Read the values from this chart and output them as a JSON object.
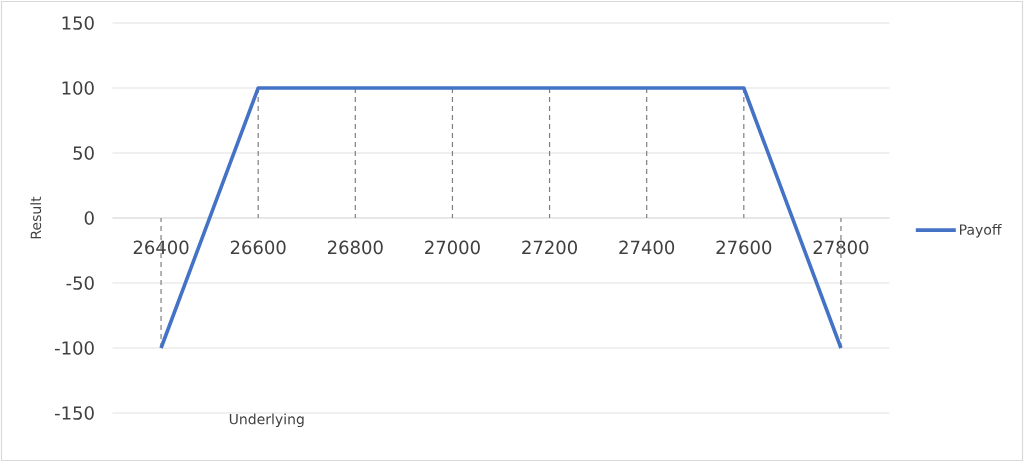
{
  "chart_data": {
    "type": "line",
    "xlabel": "Underlying",
    "ylabel": "Result",
    "categories": [
      "26400",
      "26600",
      "26800",
      "27000",
      "27200",
      "27400",
      "27600",
      "27800"
    ],
    "series": [
      {
        "name": "Payoff",
        "color": "#4472c4",
        "values": [
          -100,
          100,
          100,
          100,
          100,
          100,
          100,
          -100
        ],
        "errors": [
          [
            -100,
            0
          ],
          [
            0,
            100
          ],
          [
            0,
            100
          ],
          [
            0,
            100
          ],
          [
            0,
            100
          ],
          [
            0,
            100
          ],
          [
            0,
            100
          ],
          [
            -100,
            0
          ]
        ]
      }
    ],
    "ylim": [
      -150,
      150
    ],
    "yticks": [
      -150,
      -100,
      -50,
      0,
      50,
      100,
      150
    ],
    "grid": "y",
    "legend": "right"
  }
}
